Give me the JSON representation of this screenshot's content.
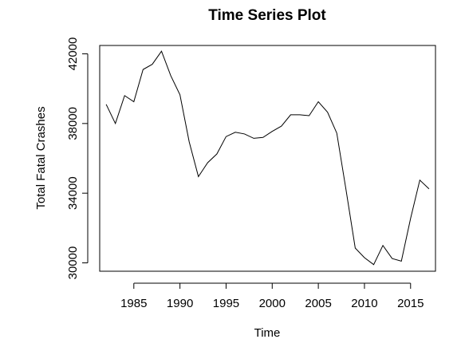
{
  "chart_data": {
    "type": "line",
    "title": "Time Series Plot",
    "xlabel": "Time",
    "ylabel": "Total Fatal Crashes",
    "xlim": [
      1981.3,
      2017.7
    ],
    "ylim": [
      29520,
      42480
    ],
    "xticks": [
      1985,
      1990,
      1995,
      2000,
      2005,
      2010,
      2015
    ],
    "yticks": [
      30000,
      34000,
      38000,
      42000
    ],
    "grid": false,
    "line_color": "#000000",
    "series": [
      {
        "x": [
          1982,
          1983,
          1984,
          1985,
          1986,
          1987,
          1988,
          1989,
          1990,
          1991,
          1992,
          1993,
          1994,
          1995,
          1996,
          1997,
          1998,
          1999,
          2000,
          2001,
          2002,
          2003,
          2004,
          2005,
          2006,
          2007,
          2008,
          2009,
          2010,
          2011,
          2012,
          2013,
          2014,
          2015,
          2016,
          2017
        ],
        "values": [
          39100,
          38000,
          39600,
          39250,
          41100,
          41400,
          42150,
          40750,
          39650,
          36950,
          34950,
          35750,
          36250,
          37250,
          37500,
          37400,
          37150,
          37200,
          37550,
          37850,
          38500,
          38500,
          38450,
          39250,
          38650,
          37450,
          34200,
          30850,
          30300,
          29900,
          31000,
          30250,
          30100,
          32550,
          34750,
          34250
        ]
      }
    ]
  }
}
